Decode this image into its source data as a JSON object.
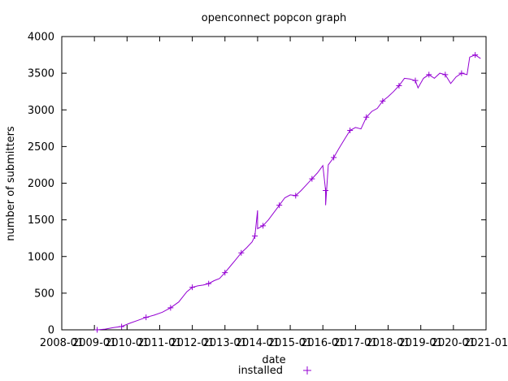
{
  "chart_data": {
    "type": "line",
    "title": "openconnect popcon graph",
    "xlabel": "date",
    "ylabel": "number of submitters",
    "x_ticks": [
      "2008-01",
      "2009-01",
      "2010-01",
      "2011-01",
      "2012-01",
      "2013-01",
      "2014-01",
      "2015-01",
      "2016-01",
      "2017-01",
      "2018-01",
      "2019-01",
      "2020-01",
      "2021-01"
    ],
    "xlim": [
      "2008-01",
      "2021-01"
    ],
    "ylim": [
      0,
      4000
    ],
    "y_ticks": [
      0,
      500,
      1000,
      1500,
      2000,
      2500,
      3000,
      3500,
      4000
    ],
    "grid": false,
    "legend": "bottom-center",
    "series": [
      {
        "name": "installed",
        "color": "#9400d3",
        "marker": "plus",
        "points": [
          [
            "2009-02",
            0
          ],
          [
            "2009-05",
            10
          ],
          [
            "2009-08",
            30
          ],
          [
            "2009-11",
            45
          ],
          [
            "2010-02",
            90
          ],
          [
            "2010-05",
            130
          ],
          [
            "2010-08",
            170
          ],
          [
            "2010-11",
            200
          ],
          [
            "2011-02",
            240
          ],
          [
            "2011-05",
            300
          ],
          [
            "2011-08",
            380
          ],
          [
            "2011-11",
            520
          ],
          [
            "2012-01",
            580
          ],
          [
            "2012-03",
            600
          ],
          [
            "2012-05",
            610
          ],
          [
            "2012-07",
            630
          ],
          [
            "2012-09",
            670
          ],
          [
            "2012-11",
            700
          ],
          [
            "2013-01",
            780
          ],
          [
            "2013-03",
            870
          ],
          [
            "2013-05",
            960
          ],
          [
            "2013-07",
            1050
          ],
          [
            "2013-09",
            1120
          ],
          [
            "2013-11",
            1200
          ],
          [
            "2013-12",
            1280
          ],
          [
            "2014-01",
            1630
          ],
          [
            "2014-01",
            1380
          ],
          [
            "2014-03",
            1420
          ],
          [
            "2014-05",
            1500
          ],
          [
            "2014-07",
            1600
          ],
          [
            "2014-09",
            1700
          ],
          [
            "2014-11",
            1800
          ],
          [
            "2015-01",
            1840
          ],
          [
            "2015-03",
            1830
          ],
          [
            "2015-05",
            1900
          ],
          [
            "2015-07",
            1980
          ],
          [
            "2015-09",
            2060
          ],
          [
            "2015-11",
            2140
          ],
          [
            "2016-01",
            2240
          ],
          [
            "2016-02",
            1900
          ],
          [
            "2016-02",
            1700
          ],
          [
            "2016-03",
            2250
          ],
          [
            "2016-05",
            2350
          ],
          [
            "2016-07",
            2480
          ],
          [
            "2016-09",
            2600
          ],
          [
            "2016-11",
            2720
          ],
          [
            "2017-01",
            2760
          ],
          [
            "2017-03",
            2740
          ],
          [
            "2017-05",
            2900
          ],
          [
            "2017-07",
            2980
          ],
          [
            "2017-09",
            3020
          ],
          [
            "2017-11",
            3120
          ],
          [
            "2018-01",
            3180
          ],
          [
            "2018-03",
            3250
          ],
          [
            "2018-05",
            3330
          ],
          [
            "2018-07",
            3430
          ],
          [
            "2018-09",
            3420
          ],
          [
            "2018-11",
            3400
          ],
          [
            "2018-12",
            3300
          ],
          [
            "2019-02",
            3430
          ],
          [
            "2019-04",
            3480
          ],
          [
            "2019-06",
            3430
          ],
          [
            "2019-08",
            3500
          ],
          [
            "2019-10",
            3480
          ],
          [
            "2019-12",
            3360
          ],
          [
            "2020-02",
            3450
          ],
          [
            "2020-04",
            3500
          ],
          [
            "2020-06",
            3480
          ],
          [
            "2020-07",
            3720
          ],
          [
            "2020-09",
            3750
          ],
          [
            "2020-11",
            3700
          ]
        ]
      }
    ]
  }
}
